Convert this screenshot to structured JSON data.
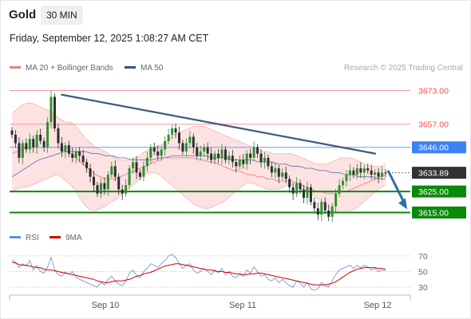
{
  "header": {
    "symbol": "Gold",
    "timeframe": "30 MIN",
    "datetime": "Friday, September 12, 2025 1:08:27 AM CET"
  },
  "legend": {
    "ma20_label": "MA 20 + Bollinger Bands",
    "ma50_label": "MA 50",
    "ma20_color": "#f08080",
    "ma50_color": "#35557a",
    "credit": "Research © 2025 Trading Central"
  },
  "rsi_legend": {
    "rsi_label": "RSI",
    "ma9_label": "9MA",
    "rsi_color": "#6b8bd6",
    "ma9_color": "#d40000"
  },
  "colors": {
    "up": "#2f8f2f",
    "down": "#2e2e2e",
    "band_fill": "#fde2e2",
    "resistance": "#e8544f",
    "pivot": "#3b82f6",
    "support": "#0a8a0a",
    "trendline": "#3d5a80",
    "arrow": "#2e6da4"
  },
  "chart_data": [
    {
      "type": "candlestick",
      "ylim": [
        3608,
        3680
      ],
      "x_ticks": [
        "Sep 10",
        "Sep 11",
        "Sep 12"
      ],
      "levels": [
        {
          "label": "3673.00",
          "value": 3673.0,
          "kind": "resistance"
        },
        {
          "label": "3657.00",
          "value": 3657.0,
          "kind": "resistance"
        },
        {
          "label": "3646.00",
          "value": 3646.0,
          "kind": "pivot"
        },
        {
          "label": "3633.89",
          "value": 3633.89,
          "kind": "last"
        },
        {
          "label": "3625.00",
          "value": 3625.0,
          "kind": "support"
        },
        {
          "label": "3615.00",
          "value": 3615.0,
          "kind": "support"
        }
      ],
      "closes": [
        3652,
        3648,
        3641,
        3648,
        3645,
        3650,
        3646,
        3652,
        3649,
        3646,
        3658,
        3670,
        3655,
        3648,
        3644,
        3647,
        3643,
        3641,
        3644,
        3642,
        3639,
        3636,
        3632,
        3628,
        3624,
        3629,
        3626,
        3633,
        3637,
        3632,
        3626,
        3624,
        3628,
        3636,
        3639,
        3634,
        3632,
        3637,
        3641,
        3646,
        3644,
        3642,
        3645,
        3649,
        3652,
        3655,
        3653,
        3648,
        3644,
        3648,
        3651,
        3646,
        3642,
        3644,
        3646,
        3643,
        3640,
        3643,
        3641,
        3645,
        3640,
        3642,
        3639,
        3637,
        3640,
        3638,
        3643,
        3641,
        3646,
        3643,
        3639,
        3641,
        3637,
        3634,
        3636,
        3632,
        3634,
        3631,
        3627,
        3624,
        3629,
        3626,
        3622,
        3627,
        3620,
        3617,
        3614,
        3620,
        3616,
        3613,
        3618,
        3624,
        3628,
        3630,
        3633,
        3635,
        3633,
        3636,
        3634,
        3636,
        3635,
        3633,
        3634,
        3632,
        3634,
        3633.89
      ],
      "bb_upper": [
        3662,
        3664,
        3666,
        3667,
        3667,
        3666,
        3665,
        3664,
        3663,
        3661,
        3659,
        3658,
        3658,
        3656,
        3653,
        3650,
        3648,
        3646,
        3645,
        3644,
        3642,
        3641,
        3640,
        3640,
        3640,
        3641,
        3642,
        3644,
        3645,
        3646,
        3647,
        3648,
        3650,
        3652,
        3653,
        3654,
        3655,
        3656,
        3656,
        3656,
        3655,
        3654,
        3653,
        3652,
        3651,
        3650,
        3649,
        3648,
        3647,
        3646,
        3645,
        3644,
        3644,
        3643,
        3643,
        3643,
        3643,
        3643,
        3642,
        3641,
        3640,
        3639,
        3638,
        3638,
        3638,
        3639,
        3640,
        3641,
        3641,
        3641,
        3640,
        3639,
        3638,
        3637,
        3637,
        3637,
        3638
      ],
      "bb_lower": [
        3625,
        3626,
        3627,
        3627,
        3628,
        3629,
        3630,
        3631,
        3632,
        3633,
        3632,
        3630,
        3628,
        3625,
        3621,
        3618,
        3616,
        3616,
        3617,
        3618,
        3620,
        3621,
        3623,
        3625,
        3627,
        3629,
        3631,
        3633,
        3634,
        3634,
        3633,
        3631,
        3629,
        3627,
        3625,
        3623,
        3621,
        3619,
        3618,
        3617,
        3617,
        3618,
        3619,
        3620,
        3622,
        3624,
        3626,
        3628,
        3629,
        3629,
        3628,
        3627,
        3626,
        3626,
        3626,
        3627,
        3628,
        3628,
        3627,
        3626,
        3625,
        3624,
        3622,
        3620,
        3618,
        3616,
        3615,
        3615,
        3615,
        3616,
        3617,
        3619,
        3621,
        3623,
        3625,
        3627,
        3628
      ],
      "ma20": [
        3643,
        3644,
        3645,
        3646,
        3646,
        3646,
        3646,
        3646,
        3646,
        3646,
        3645,
        3644,
        3643,
        3641,
        3639,
        3637,
        3635,
        3633,
        3632,
        3631,
        3631,
        3631,
        3632,
        3633,
        3634,
        3635,
        3636,
        3637,
        3638,
        3639,
        3640,
        3641,
        3641,
        3641,
        3641,
        3641,
        3641,
        3641,
        3640,
        3640,
        3639,
        3639,
        3638,
        3637,
        3636,
        3635,
        3635,
        3634,
        3633,
        3633,
        3632,
        3632,
        3631,
        3631,
        3630,
        3630,
        3630,
        3630,
        3629,
        3628,
        3627,
        3626,
        3625,
        3625,
        3624,
        3624,
        3624,
        3625,
        3625,
        3626,
        3627,
        3628,
        3629,
        3630,
        3631,
        3632,
        3633
      ],
      "ma50": [
        3632,
        3634,
        3636,
        3638,
        3640,
        3641,
        3642,
        3643,
        3644,
        3644,
        3644,
        3644,
        3643,
        3643,
        3642,
        3642,
        3641,
        3641,
        3640,
        3640,
        3640,
        3640,
        3641,
        3641,
        3642,
        3642,
        3642,
        3642,
        3642,
        3642,
        3641,
        3641,
        3641,
        3640,
        3640,
        3640,
        3640,
        3639,
        3639,
        3639,
        3638,
        3638,
        3637,
        3637,
        3636,
        3636,
        3635,
        3635,
        3634,
        3634,
        3633,
        3633,
        3632,
        3632,
        3632,
        3631,
        3631
      ],
      "trendline": {
        "start_close_index": 14,
        "start": 3671,
        "end_close_index": 112,
        "end": 3643
      },
      "projection": {
        "from": 3635,
        "to": 3615
      }
    },
    {
      "type": "line",
      "title": "RSI",
      "ylim": [
        22,
        78
      ],
      "y_ticks": [
        70,
        50,
        30
      ],
      "series": [
        {
          "name": "RSI",
          "values": [
            65,
            62,
            55,
            60,
            57,
            64,
            52,
            58,
            50,
            48,
            56,
            68,
            52,
            46,
            44,
            49,
            47,
            50,
            43,
            40,
            38,
            36,
            34,
            32,
            30,
            36,
            33,
            40,
            44,
            38,
            34,
            32,
            38,
            48,
            52,
            45,
            42,
            50,
            54,
            60,
            58,
            55,
            60,
            64,
            70,
            72,
            68,
            60,
            54,
            58,
            60,
            52,
            48,
            50,
            54,
            50,
            46,
            52,
            48,
            54,
            46,
            50,
            44,
            42,
            46,
            44,
            52,
            48,
            56,
            50,
            44,
            46,
            40,
            38,
            42,
            36,
            40,
            36,
            32,
            30,
            38,
            35,
            30,
            36,
            28,
            26,
            28,
            36,
            32,
            30,
            38,
            46,
            52,
            54,
            56,
            58,
            54,
            58,
            55,
            58,
            56,
            52,
            54,
            50,
            52,
            51
          ]
        },
        {
          "name": "9MA",
          "values": [
            62,
            61,
            59,
            58,
            58,
            57,
            56,
            55,
            55,
            53,
            52,
            52,
            51,
            50,
            49,
            48,
            47,
            46,
            45,
            44,
            43,
            42,
            41,
            40,
            38,
            37,
            36,
            36,
            37,
            38,
            38,
            38,
            39,
            40,
            42,
            44,
            45,
            47,
            48,
            49,
            51,
            53,
            55,
            57,
            58,
            59,
            60,
            60,
            59,
            58,
            57,
            56,
            55,
            54,
            53,
            52,
            52,
            51,
            50,
            50,
            49,
            49,
            48,
            47,
            47,
            46,
            46,
            47,
            47,
            48,
            48,
            47,
            46,
            45,
            44,
            43,
            42,
            41,
            40,
            39,
            38,
            37,
            36,
            35,
            34,
            33,
            33,
            33,
            33,
            34,
            35,
            37,
            40,
            43,
            46,
            49,
            51,
            53,
            54,
            55,
            55,
            55,
            55,
            54,
            54,
            53
          ]
        }
      ]
    }
  ]
}
